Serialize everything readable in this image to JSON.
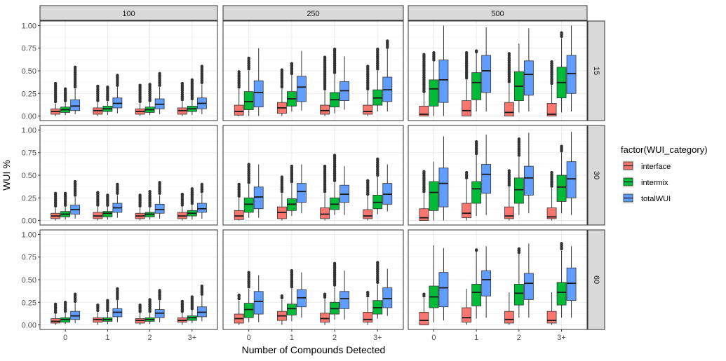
{
  "chart_data": {
    "type": "box",
    "xlabel": "Number of Compounds Detected",
    "ylabel": "WUI %",
    "ylim": [
      0,
      1
    ],
    "yticks": [
      "0.00",
      "0.25",
      "0.50",
      "0.75",
      "1.00"
    ],
    "categories": [
      "0",
      "1",
      "2",
      "3+"
    ],
    "col_facets": [
      "100",
      "250",
      "500"
    ],
    "row_facets": [
      "15",
      "30",
      "60"
    ],
    "legend": {
      "title": "factor(WUI_category)",
      "position": "right",
      "items": [
        {
          "name": "interface",
          "color": "#F8766D"
        },
        {
          "name": "intermix",
          "color": "#00BA38"
        },
        {
          "name": "totalWUI",
          "color": "#619CFF"
        }
      ]
    },
    "grid": true,
    "panels": [
      {
        "col": "100",
        "row": "15",
        "boxes": [
          [
            [
              0,
              0.02,
              0.05,
              0.08,
              0.14
            ],
            [
              0.01,
              0.04,
              0.07,
              0.1,
              0.15
            ],
            [
              0.02,
              0.06,
              0.11,
              0.18,
              0.3
            ]
          ],
          [
            [
              0,
              0.02,
              0.06,
              0.09,
              0.15
            ],
            [
              0.01,
              0.05,
              0.08,
              0.11,
              0.16
            ],
            [
              0.03,
              0.09,
              0.14,
              0.2,
              0.32
            ]
          ],
          [
            [
              0,
              0.02,
              0.05,
              0.08,
              0.14
            ],
            [
              0.01,
              0.04,
              0.07,
              0.1,
              0.15
            ],
            [
              0.02,
              0.08,
              0.13,
              0.19,
              0.32
            ]
          ],
          [
            [
              0,
              0.02,
              0.06,
              0.09,
              0.16
            ],
            [
              0.01,
              0.05,
              0.08,
              0.11,
              0.17
            ],
            [
              0.02,
              0.08,
              0.14,
              0.2,
              0.35
            ]
          ]
        ],
        "outlier_max": [
          [
            0.36,
            0.3,
            0.54
          ],
          [
            0.33,
            0.32,
            0.45
          ],
          [
            0.34,
            0.35,
            0.47
          ],
          [
            0.36,
            0.4,
            0.55
          ]
        ]
      },
      {
        "col": "250",
        "row": "15",
        "boxes": [
          [
            [
              0,
              0.01,
              0.05,
              0.12,
              0.3
            ],
            [
              0,
              0.07,
              0.16,
              0.27,
              0.5
            ],
            [
              0,
              0.1,
              0.26,
              0.39,
              0.75
            ]
          ],
          [
            [
              0,
              0.03,
              0.09,
              0.15,
              0.3
            ],
            [
              0.05,
              0.11,
              0.19,
              0.27,
              0.45
            ],
            [
              0.06,
              0.16,
              0.32,
              0.44,
              0.72
            ]
          ],
          [
            [
              0,
              0.02,
              0.06,
              0.12,
              0.28
            ],
            [
              0.03,
              0.1,
              0.18,
              0.26,
              0.46
            ],
            [
              0.07,
              0.17,
              0.28,
              0.38,
              0.66
            ]
          ],
          [
            [
              0,
              0.02,
              0.05,
              0.12,
              0.28
            ],
            [
              0.05,
              0.12,
              0.2,
              0.29,
              0.5
            ],
            [
              0.05,
              0.16,
              0.29,
              0.43,
              0.74
            ]
          ]
        ],
        "outlier_max": [
          [
            0.49,
            0.64,
            null
          ],
          [
            0.51,
            0.58,
            null
          ],
          [
            0.65,
            0.74,
            null
          ],
          [
            0.55,
            0.74,
            0.83
          ]
        ]
      },
      {
        "col": "500",
        "row": "15",
        "boxes": [
          [
            [
              0,
              0,
              0.02,
              0.11,
              0.25
            ],
            [
              0,
              0.11,
              0.3,
              0.4,
              0.6
            ],
            [
              0,
              0.15,
              0.4,
              0.62,
              1.0
            ]
          ],
          [
            [
              0,
              0,
              0.06,
              0.17,
              0.4
            ],
            [
              0.05,
              0.18,
              0.37,
              0.48,
              0.7
            ],
            [
              0.05,
              0.26,
              0.5,
              0.67,
              0.98
            ]
          ],
          [
            [
              0,
              0,
              0.04,
              0.15,
              0.36
            ],
            [
              0.04,
              0.17,
              0.33,
              0.49,
              0.8
            ],
            [
              0.05,
              0.23,
              0.46,
              0.61,
              0.97
            ]
          ],
          [
            [
              0,
              0,
              0.02,
              0.14,
              0.34
            ],
            [
              0.04,
              0.2,
              0.37,
              0.54,
              0.86
            ],
            [
              0.05,
              0.25,
              0.47,
              0.67,
              1.0
            ]
          ]
        ],
        "outlier_max": [
          [
            0.68,
            0.7,
            null
          ],
          [
            0.7,
            0.72,
            null
          ],
          [
            0.69,
            0.72,
            null
          ],
          [
            0.6,
            0.92,
            null
          ]
        ]
      },
      {
        "col": "100",
        "row": "30",
        "boxes": [
          [
            [
              0,
              0.02,
              0.05,
              0.08,
              0.14
            ],
            [
              0.01,
              0.04,
              0.07,
              0.1,
              0.15
            ],
            [
              0.02,
              0.07,
              0.12,
              0.17,
              0.26
            ]
          ],
          [
            [
              0,
              0.02,
              0.05,
              0.09,
              0.15
            ],
            [
              0.01,
              0.04,
              0.08,
              0.1,
              0.15
            ],
            [
              0.03,
              0.09,
              0.14,
              0.19,
              0.28
            ]
          ],
          [
            [
              0,
              0.02,
              0.05,
              0.08,
              0.14
            ],
            [
              0.01,
              0.04,
              0.07,
              0.09,
              0.14
            ],
            [
              0.02,
              0.08,
              0.12,
              0.18,
              0.28
            ]
          ],
          [
            [
              0,
              0.02,
              0.05,
              0.09,
              0.15
            ],
            [
              0.01,
              0.05,
              0.08,
              0.11,
              0.17
            ],
            [
              0.02,
              0.09,
              0.13,
              0.19,
              0.3
            ]
          ]
        ],
        "outlier_max": [
          [
            0.3,
            0.3,
            0.43
          ],
          [
            0.31,
            0.28,
            0.4
          ],
          [
            0.28,
            0.32,
            0.42
          ],
          [
            0.29,
            0.35,
            0.4
          ]
        ]
      },
      {
        "col": "250",
        "row": "30",
        "boxes": [
          [
            [
              0,
              0.01,
              0.05,
              0.11,
              0.25
            ],
            [
              0.03,
              0.09,
              0.18,
              0.25,
              0.4
            ],
            [
              0.03,
              0.13,
              0.26,
              0.37,
              0.62
            ]
          ],
          [
            [
              0,
              0.02,
              0.09,
              0.15,
              0.3
            ],
            [
              0.05,
              0.11,
              0.18,
              0.24,
              0.41
            ],
            [
              0.08,
              0.2,
              0.32,
              0.41,
              0.62
            ]
          ],
          [
            [
              0,
              0.02,
              0.07,
              0.14,
              0.3
            ],
            [
              0.06,
              0.12,
              0.18,
              0.25,
              0.42
            ],
            [
              0.06,
              0.2,
              0.29,
              0.39,
              0.6
            ]
          ],
          [
            [
              0,
              0.02,
              0.05,
              0.12,
              0.27
            ],
            [
              0.07,
              0.13,
              0.2,
              0.28,
              0.48
            ],
            [
              0.1,
              0.18,
              0.29,
              0.41,
              0.62
            ]
          ]
        ],
        "outlier_max": [
          [
            0.4,
            0.62,
            null
          ],
          [
            0.48,
            0.6,
            null
          ],
          [
            0.6,
            0.72,
            null
          ],
          [
            0.44,
            0.68,
            null
          ]
        ]
      },
      {
        "col": "500",
        "row": "30",
        "boxes": [
          [
            [
              0,
              0,
              0.03,
              0.13,
              0.3
            ],
            [
              0,
              0.11,
              0.31,
              0.43,
              0.65
            ],
            [
              0,
              0.15,
              0.41,
              0.58,
              0.93
            ]
          ],
          [
            [
              0,
              0.03,
              0.08,
              0.19,
              0.45
            ],
            [
              0.05,
              0.19,
              0.35,
              0.43,
              0.72
            ],
            [
              0.06,
              0.3,
              0.51,
              0.62,
              0.95
            ]
          ],
          [
            [
              0,
              0.02,
              0.05,
              0.15,
              0.37
            ],
            [
              0.06,
              0.19,
              0.34,
              0.47,
              0.7
            ],
            [
              0.08,
              0.28,
              0.47,
              0.6,
              0.97
            ]
          ],
          [
            [
              0,
              0.02,
              0.04,
              0.14,
              0.36
            ],
            [
              0.08,
              0.21,
              0.37,
              0.5,
              0.75
            ],
            [
              0.06,
              0.25,
              0.46,
              0.65,
              0.98
            ]
          ]
        ],
        "outlier_max": [
          [
            0.54,
            0.55,
            null
          ],
          [
            0.53,
            0.87,
            null
          ],
          [
            0.55,
            0.9,
            null
          ],
          [
            0.53,
            0.82,
            null
          ]
        ]
      },
      {
        "col": "100",
        "row": "60",
        "boxes": [
          [
            [
              0,
              0.02,
              0.04,
              0.07,
              0.12
            ],
            [
              0.01,
              0.03,
              0.06,
              0.08,
              0.13
            ],
            [
              0.02,
              0.06,
              0.1,
              0.15,
              0.24
            ]
          ],
          [
            [
              0,
              0.03,
              0.06,
              0.08,
              0.14
            ],
            [
              0.01,
              0.04,
              0.06,
              0.08,
              0.14
            ],
            [
              0.03,
              0.09,
              0.14,
              0.18,
              0.27
            ]
          ],
          [
            [
              0,
              0.02,
              0.05,
              0.07,
              0.13
            ],
            [
              0.01,
              0.04,
              0.06,
              0.08,
              0.13
            ],
            [
              0.03,
              0.08,
              0.13,
              0.17,
              0.27
            ]
          ],
          [
            [
              0,
              0.03,
              0.05,
              0.08,
              0.13
            ],
            [
              0.02,
              0.05,
              0.08,
              0.1,
              0.16
            ],
            [
              0.04,
              0.09,
              0.14,
              0.2,
              0.32
            ]
          ]
        ],
        "outlier_max": [
          [
            0.23,
            0.25,
            0.34
          ],
          [
            0.22,
            0.27,
            0.4
          ],
          [
            0.22,
            0.28,
            0.38
          ],
          [
            0.26,
            0.31,
            0.43
          ]
        ]
      },
      {
        "col": "250",
        "row": "60",
        "boxes": [
          [
            [
              0,
              0.02,
              0.07,
              0.12,
              0.27
            ],
            [
              0.03,
              0.08,
              0.17,
              0.24,
              0.4
            ],
            [
              0.03,
              0.12,
              0.26,
              0.37,
              0.55
            ]
          ],
          [
            [
              0,
              0.05,
              0.1,
              0.15,
              0.28
            ],
            [
              0.04,
              0.11,
              0.18,
              0.23,
              0.4
            ],
            [
              0.08,
              0.2,
              0.3,
              0.39,
              0.58
            ]
          ],
          [
            [
              0,
              0.03,
              0.07,
              0.13,
              0.29
            ],
            [
              0.06,
              0.12,
              0.18,
              0.25,
              0.42
            ],
            [
              0.06,
              0.18,
              0.29,
              0.37,
              0.6
            ]
          ],
          [
            [
              0,
              0.03,
              0.06,
              0.14,
              0.3
            ],
            [
              0.07,
              0.12,
              0.19,
              0.27,
              0.45
            ],
            [
              0.1,
              0.19,
              0.29,
              0.41,
              0.62
            ]
          ]
        ],
        "outlier_max": [
          [
            0.33,
            0.58,
            null
          ],
          [
            0.32,
            0.6,
            null
          ],
          [
            0.34,
            0.68,
            null
          ],
          [
            0.36,
            0.69,
            null
          ]
        ]
      },
      {
        "col": "500",
        "row": "60",
        "boxes": [
          [
            [
              0,
              0,
              0.05,
              0.14,
              0.3
            ],
            [
              0.03,
              0.19,
              0.31,
              0.43,
              0.88
            ],
            [
              0.05,
              0.2,
              0.41,
              0.58,
              0.85
            ]
          ],
          [
            [
              0,
              0.03,
              0.08,
              0.19,
              0.4
            ],
            [
              0.07,
              0.21,
              0.36,
              0.45,
              0.82
            ],
            [
              0.08,
              0.32,
              0.5,
              0.6,
              0.87
            ]
          ],
          [
            [
              0,
              0.02,
              0.06,
              0.15,
              0.36
            ],
            [
              0.08,
              0.22,
              0.35,
              0.45,
              0.78
            ],
            [
              0.08,
              0.28,
              0.46,
              0.57,
              0.9
            ]
          ],
          [
            [
              0,
              0.02,
              0.05,
              0.15,
              0.36
            ],
            [
              0.08,
              0.22,
              0.36,
              0.47,
              0.82
            ],
            [
              0.08,
              0.27,
              0.46,
              0.63,
              0.87
            ]
          ]
        ],
        "outlier_max": [
          [
            0.34,
            null,
            null
          ],
          [
            null,
            0.83,
            null
          ],
          [
            null,
            0.84,
            null
          ],
          [
            null,
            0.9,
            null
          ]
        ]
      }
    ]
  }
}
